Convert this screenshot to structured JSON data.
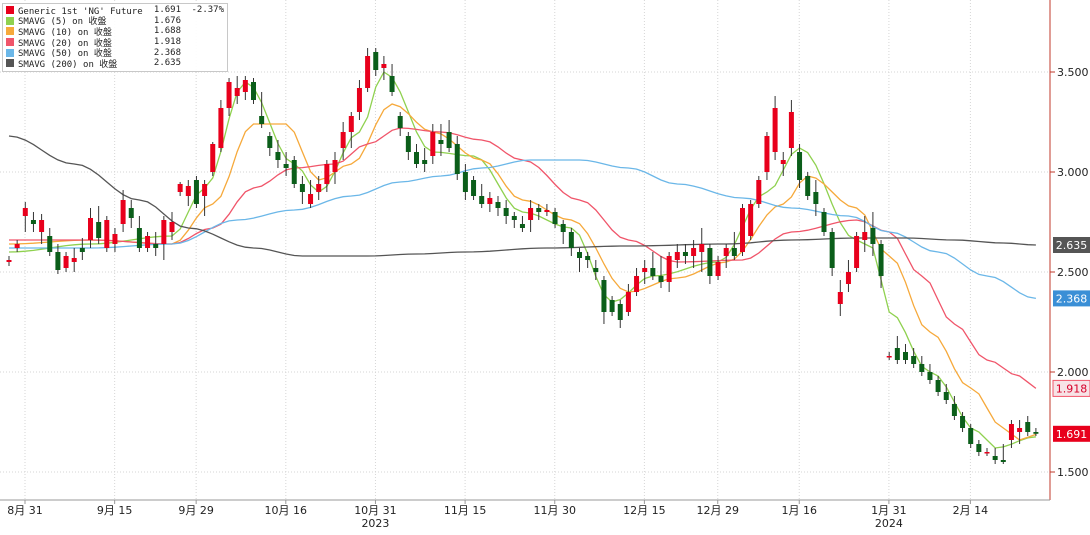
{
  "chart_data": {
    "type": "candlestick",
    "title": "",
    "y_range": [
      1.36,
      3.86
    ],
    "y_ticks": [
      1.5,
      2.0,
      2.5,
      3.0,
      3.5
    ],
    "y_tick_labels": [
      "1.500",
      "2.000",
      "2.500",
      "3.000",
      "3.500"
    ],
    "grid": true,
    "legend_placement": "top-left",
    "x_ticks": [
      {
        "label": "8月 31",
        "index": 0
      },
      {
        "label": "9月 15",
        "index": 11
      },
      {
        "label": "9月 29",
        "index": 21
      },
      {
        "label": "10月 16",
        "index": 32
      },
      {
        "label": "10月 31",
        "index": 43
      },
      {
        "label": "11月 15",
        "index": 54
      },
      {
        "label": "11月 30",
        "index": 65
      },
      {
        "label": "12月 15",
        "index": 76
      },
      {
        "label": "12月 29",
        "index": 85
      },
      {
        "label": "1月 16",
        "index": 95
      },
      {
        "label": "1月 31",
        "index": 106
      },
      {
        "label": "2月 14",
        "index": 116
      }
    ],
    "year_labels": [
      {
        "label": "2023",
        "index": 43
      },
      {
        "label": "2024",
        "index": 106
      }
    ],
    "candles": [
      [
        2.55,
        2.58,
        2.53,
        2.56
      ],
      [
        2.62,
        2.66,
        2.6,
        2.64
      ],
      [
        2.78,
        2.85,
        2.7,
        2.82
      ],
      [
        2.76,
        2.8,
        2.7,
        2.74
      ],
      [
        2.7,
        2.79,
        2.64,
        2.76
      ],
      [
        2.68,
        2.72,
        2.58,
        2.6
      ],
      [
        2.6,
        2.64,
        2.49,
        2.51
      ],
      [
        2.52,
        2.6,
        2.5,
        2.58
      ],
      [
        2.55,
        2.62,
        2.5,
        2.57
      ],
      [
        2.62,
        2.67,
        2.56,
        2.6
      ],
      [
        2.66,
        2.82,
        2.62,
        2.77
      ],
      [
        2.75,
        2.83,
        2.64,
        2.67
      ],
      [
        2.62,
        2.78,
        2.6,
        2.76
      ],
      [
        2.64,
        2.72,
        2.6,
        2.69
      ],
      [
        2.74,
        2.91,
        2.7,
        2.86
      ],
      [
        2.82,
        2.86,
        2.72,
        2.77
      ],
      [
        2.72,
        2.78,
        2.6,
        2.62
      ],
      [
        2.62,
        2.7,
        2.6,
        2.68
      ],
      [
        2.64,
        2.7,
        2.58,
        2.62
      ],
      [
        2.64,
        2.78,
        2.56,
        2.76
      ],
      [
        2.7,
        2.8,
        2.66,
        2.75
      ],
      [
        2.9,
        2.95,
        2.88,
        2.94
      ],
      [
        2.88,
        2.96,
        2.83,
        2.93
      ],
      [
        2.96,
        2.98,
        2.82,
        2.84
      ],
      [
        2.88,
        2.96,
        2.78,
        2.94
      ],
      [
        3.0,
        3.15,
        2.98,
        3.14
      ],
      [
        3.12,
        3.36,
        3.1,
        3.32
      ],
      [
        3.32,
        3.47,
        3.28,
        3.45
      ],
      [
        3.38,
        3.48,
        3.34,
        3.42
      ],
      [
        3.4,
        3.48,
        3.36,
        3.46
      ],
      [
        3.45,
        3.47,
        3.34,
        3.36
      ],
      [
        3.28,
        3.4,
        3.22,
        3.24
      ],
      [
        3.18,
        3.2,
        3.08,
        3.12
      ],
      [
        3.1,
        3.16,
        3.02,
        3.06
      ],
      [
        3.04,
        3.1,
        2.98,
        3.02
      ],
      [
        3.06,
        3.08,
        2.92,
        2.94
      ],
      [
        2.94,
        2.98,
        2.84,
        2.9
      ],
      [
        2.84,
        2.96,
        2.82,
        2.89
      ],
      [
        2.9,
        2.98,
        2.86,
        2.94
      ],
      [
        2.94,
        3.06,
        2.9,
        3.04
      ],
      [
        3.0,
        3.1,
        2.94,
        3.06
      ],
      [
        3.12,
        3.25,
        3.06,
        3.2
      ],
      [
        3.2,
        3.3,
        3.12,
        3.28
      ],
      [
        3.3,
        3.46,
        3.26,
        3.42
      ],
      [
        3.42,
        3.62,
        3.4,
        3.58
      ],
      [
        3.6,
        3.62,
        3.48,
        3.51
      ],
      [
        3.52,
        3.58,
        3.46,
        3.54
      ],
      [
        3.48,
        3.54,
        3.38,
        3.4
      ],
      [
        3.28,
        3.3,
        3.18,
        3.22
      ],
      [
        3.18,
        3.2,
        3.06,
        3.1
      ],
      [
        3.1,
        3.14,
        3.02,
        3.04
      ],
      [
        3.06,
        3.12,
        3.0,
        3.04
      ],
      [
        3.08,
        3.24,
        3.04,
        3.2
      ],
      [
        3.16,
        3.24,
        3.08,
        3.14
      ],
      [
        3.2,
        3.26,
        3.1,
        3.12
      ],
      [
        3.14,
        3.18,
        2.96,
        2.99
      ],
      [
        3.0,
        3.04,
        2.86,
        2.9
      ],
      [
        2.96,
        2.98,
        2.86,
        2.88
      ],
      [
        2.88,
        2.94,
        2.82,
        2.84
      ],
      [
        2.84,
        2.9,
        2.8,
        2.87
      ],
      [
        2.85,
        2.88,
        2.78,
        2.82
      ],
      [
        2.82,
        2.86,
        2.74,
        2.78
      ],
      [
        2.78,
        2.8,
        2.72,
        2.76
      ],
      [
        2.74,
        2.78,
        2.7,
        2.72
      ],
      [
        2.76,
        2.86,
        2.7,
        2.82
      ],
      [
        2.82,
        2.84,
        2.76,
        2.8
      ],
      [
        2.8,
        2.84,
        2.78,
        2.81
      ],
      [
        2.8,
        2.82,
        2.72,
        2.74
      ],
      [
        2.74,
        2.76,
        2.64,
        2.7
      ],
      [
        2.7,
        2.72,
        2.58,
        2.62
      ],
      [
        2.6,
        2.62,
        2.5,
        2.57
      ],
      [
        2.58,
        2.6,
        2.52,
        2.56
      ],
      [
        2.52,
        2.56,
        2.46,
        2.5
      ],
      [
        2.46,
        2.48,
        2.24,
        2.3
      ],
      [
        2.36,
        2.38,
        2.28,
        2.3
      ],
      [
        2.34,
        2.36,
        2.22,
        2.26
      ],
      [
        2.3,
        2.44,
        2.28,
        2.4
      ],
      [
        2.4,
        2.52,
        2.38,
        2.48
      ],
      [
        2.5,
        2.56,
        2.44,
        2.52
      ],
      [
        2.52,
        2.6,
        2.46,
        2.48
      ],
      [
        2.48,
        2.58,
        2.42,
        2.45
      ],
      [
        2.45,
        2.6,
        2.4,
        2.58
      ],
      [
        2.56,
        2.64,
        2.52,
        2.6
      ],
      [
        2.6,
        2.64,
        2.54,
        2.58
      ],
      [
        2.58,
        2.66,
        2.52,
        2.62
      ],
      [
        2.6,
        2.72,
        2.5,
        2.64
      ],
      [
        2.62,
        2.64,
        2.44,
        2.48
      ],
      [
        2.48,
        2.58,
        2.46,
        2.55
      ],
      [
        2.58,
        2.64,
        2.52,
        2.62
      ],
      [
        2.62,
        2.7,
        2.56,
        2.58
      ],
      [
        2.6,
        2.84,
        2.58,
        2.82
      ],
      [
        2.68,
        2.86,
        2.66,
        2.84
      ],
      [
        2.84,
        2.98,
        2.82,
        2.96
      ],
      [
        3.0,
        3.2,
        2.96,
        3.18
      ],
      [
        3.1,
        3.38,
        3.06,
        3.32
      ],
      [
        3.04,
        3.1,
        2.98,
        3.06
      ],
      [
        3.12,
        3.36,
        3.08,
        3.3
      ],
      [
        3.1,
        3.14,
        2.92,
        2.96
      ],
      [
        2.98,
        3.0,
        2.86,
        2.88
      ],
      [
        2.9,
        2.96,
        2.78,
        2.84
      ],
      [
        2.8,
        2.82,
        2.68,
        2.7
      ],
      [
        2.7,
        2.72,
        2.48,
        2.52
      ],
      [
        2.34,
        2.46,
        2.28,
        2.4
      ],
      [
        2.44,
        2.56,
        2.4,
        2.5
      ],
      [
        2.52,
        2.7,
        2.5,
        2.68
      ],
      [
        2.66,
        2.78,
        2.6,
        2.7
      ],
      [
        2.72,
        2.8,
        2.58,
        2.64
      ],
      [
        2.64,
        2.66,
        2.42,
        2.48
      ],
      [
        2.08,
        2.1,
        2.06,
        2.08
      ],
      [
        2.12,
        2.18,
        2.04,
        2.06
      ],
      [
        2.1,
        2.14,
        2.04,
        2.06
      ],
      [
        2.08,
        2.12,
        2.02,
        2.04
      ],
      [
        2.04,
        2.08,
        1.98,
        2.0
      ],
      [
        2.0,
        2.04,
        1.94,
        1.96
      ],
      [
        1.96,
        1.98,
        1.88,
        1.9
      ],
      [
        1.9,
        1.94,
        1.84,
        1.86
      ],
      [
        1.84,
        1.88,
        1.76,
        1.78
      ],
      [
        1.78,
        1.8,
        1.7,
        1.72
      ],
      [
        1.72,
        1.74,
        1.62,
        1.64
      ],
      [
        1.64,
        1.66,
        1.58,
        1.6
      ],
      [
        1.6,
        1.62,
        1.58,
        1.6
      ],
      [
        1.58,
        1.62,
        1.54,
        1.56
      ],
      [
        1.56,
        1.64,
        1.54,
        1.55
      ],
      [
        1.66,
        1.76,
        1.62,
        1.74
      ],
      [
        1.7,
        1.76,
        1.64,
        1.72
      ],
      [
        1.75,
        1.78,
        1.68,
        1.7
      ],
      [
        1.7,
        1.72,
        1.68,
        1.691
      ]
    ],
    "series": [
      {
        "name": "Generic 1st 'NG' Future - 最新價",
        "value": "1.691",
        "change": "-2.37%",
        "color": "#e8001c",
        "label": "1.691"
      },
      {
        "name": "SMAVG (5) on 收盤",
        "value": "1.676",
        "color": "#8fd14f",
        "keypoints": [
          [
            0,
            2.6
          ],
          [
            10,
            2.64
          ],
          [
            20,
            2.68
          ],
          [
            24,
            2.92
          ],
          [
            29,
            3.45
          ],
          [
            35,
            3.04
          ],
          [
            38,
            2.9
          ],
          [
            43,
            3.2
          ],
          [
            46,
            3.5
          ],
          [
            52,
            3.1
          ],
          [
            57,
            3.08
          ],
          [
            63,
            2.8
          ],
          [
            69,
            2.72
          ],
          [
            74,
            2.35
          ],
          [
            79,
            2.48
          ],
          [
            87,
            2.55
          ],
          [
            93,
            2.9
          ],
          [
            97,
            3.12
          ],
          [
            104,
            2.66
          ],
          [
            106,
            2.62
          ],
          [
            108,
            2.3
          ],
          [
            113,
            2.0
          ],
          [
            119,
            1.7
          ],
          [
            121,
            1.62
          ],
          [
            126,
            1.676
          ]
        ]
      },
      {
        "name": "SMAVG (10) on 收盤",
        "value": "1.688",
        "color": "#f6a93b",
        "keypoints": [
          [
            0,
            2.64
          ],
          [
            10,
            2.66
          ],
          [
            20,
            2.64
          ],
          [
            25,
            2.84
          ],
          [
            30,
            3.24
          ],
          [
            34,
            3.24
          ],
          [
            38,
            2.96
          ],
          [
            42,
            3.04
          ],
          [
            47,
            3.34
          ],
          [
            52,
            3.2
          ],
          [
            58,
            3.06
          ],
          [
            63,
            2.86
          ],
          [
            69,
            2.76
          ],
          [
            76,
            2.4
          ],
          [
            82,
            2.47
          ],
          [
            88,
            2.55
          ],
          [
            95,
            2.84
          ],
          [
            98,
            2.98
          ],
          [
            104,
            2.82
          ],
          [
            108,
            2.58
          ],
          [
            113,
            2.2
          ],
          [
            118,
            1.92
          ],
          [
            122,
            1.72
          ],
          [
            124,
            1.66
          ],
          [
            126,
            1.688
          ]
        ]
      },
      {
        "name": "SMAVG (20) on 收盤",
        "value": "1.918",
        "color": "#f0556a",
        "keypoints": [
          [
            0,
            2.66
          ],
          [
            10,
            2.66
          ],
          [
            20,
            2.64
          ],
          [
            25,
            2.72
          ],
          [
            30,
            2.92
          ],
          [
            35,
            3.02
          ],
          [
            40,
            3.04
          ],
          [
            44,
            3.14
          ],
          [
            48,
            3.22
          ],
          [
            53,
            3.2
          ],
          [
            58,
            3.16
          ],
          [
            63,
            3.06
          ],
          [
            70,
            2.86
          ],
          [
            76,
            2.66
          ],
          [
            82,
            2.55
          ],
          [
            90,
            2.56
          ],
          [
            96,
            2.7
          ],
          [
            104,
            2.76
          ],
          [
            108,
            2.7
          ],
          [
            112,
            2.48
          ],
          [
            116,
            2.24
          ],
          [
            120,
            2.06
          ],
          [
            124,
            1.98
          ],
          [
            126,
            1.918
          ]
        ]
      },
      {
        "name": "SMAVG (50) on 收盤",
        "value": "2.368",
        "color": "#6bb7e8",
        "keypoints": [
          [
            0,
            2.62
          ],
          [
            10,
            2.62
          ],
          [
            20,
            2.64
          ],
          [
            28,
            2.76
          ],
          [
            35,
            2.81
          ],
          [
            42,
            2.88
          ],
          [
            48,
            2.95
          ],
          [
            53,
            2.98
          ],
          [
            58,
            3.02
          ],
          [
            64,
            3.06
          ],
          [
            70,
            3.06
          ],
          [
            76,
            3.02
          ],
          [
            82,
            2.94
          ],
          [
            90,
            2.87
          ],
          [
            96,
            2.82
          ],
          [
            103,
            2.78
          ],
          [
            108,
            2.7
          ],
          [
            114,
            2.6
          ],
          [
            120,
            2.48
          ],
          [
            126,
            2.368
          ]
        ]
      },
      {
        "name": "SMAVG (200) on 收盤",
        "value": "2.635",
        "color": "#555555",
        "keypoints": [
          [
            0,
            3.18
          ],
          [
            8,
            3.04
          ],
          [
            16,
            2.86
          ],
          [
            22,
            2.72
          ],
          [
            30,
            2.62
          ],
          [
            36,
            2.58
          ],
          [
            44,
            2.58
          ],
          [
            50,
            2.59
          ],
          [
            56,
            2.6
          ],
          [
            66,
            2.62
          ],
          [
            76,
            2.63
          ],
          [
            88,
            2.64
          ],
          [
            96,
            2.66
          ],
          [
            104,
            2.67
          ],
          [
            110,
            2.67
          ],
          [
            116,
            2.66
          ],
          [
            122,
            2.645
          ],
          [
            126,
            2.635
          ]
        ]
      }
    ]
  }
}
